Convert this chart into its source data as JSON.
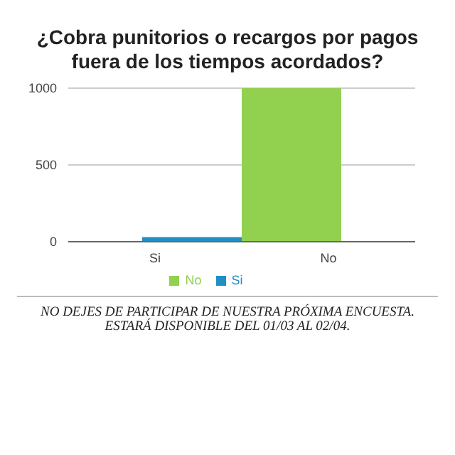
{
  "chart_data": {
    "type": "bar",
    "title": "¿Cobra punitorios o recargos por pagos fuera de los tiempos acordados?",
    "categories": [
      "Si",
      "No"
    ],
    "series": [
      {
        "name": "Si",
        "color": "#1f8fc4",
        "values": [
          30,
          null
        ]
      },
      {
        "name": "No",
        "color": "#92d050",
        "values": [
          null,
          1000
        ]
      }
    ],
    "ylim": [
      0,
      1000
    ],
    "yticks": [
      0,
      500,
      1000
    ],
    "grid": "y",
    "legend": "bottom",
    "annotations": [
      "NO DEJES DE PARTICIPAR DE NUESTRA PRÓXIMA ENCUESTA.",
      "ESTARÁ DISPONIBLE DEL 01/03 AL 02/04."
    ]
  }
}
